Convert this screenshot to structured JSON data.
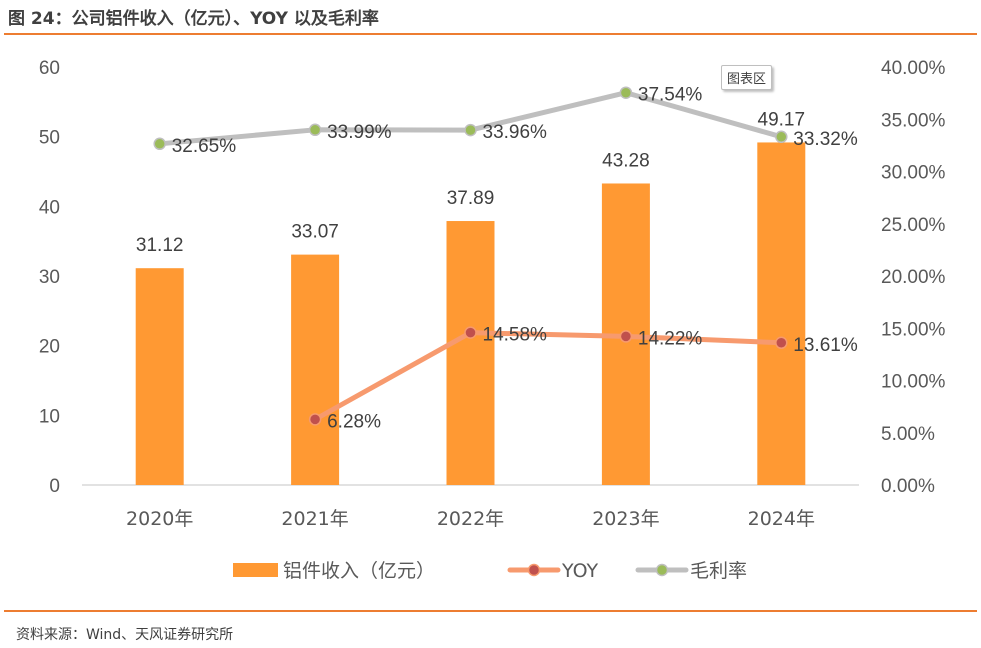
{
  "title": "图 24：公司铝件收入（亿元）、YOY 以及毛利率",
  "source": "资料来源：Wind、天风证券研究所",
  "tooltip": "图表区",
  "colors": {
    "accent_rule": "#ED7D31",
    "bar": "#FF9933",
    "yoy_line": "#F79A6E",
    "yoy_marker": "#C0504D",
    "margin_line": "#BFBFBF",
    "margin_marker": "#9BBB59"
  },
  "chart_data": {
    "type": "bar",
    "title": "公司铝件收入（亿元）、YOY 以及毛利率",
    "categories": [
      "2020年",
      "2021年",
      "2022年",
      "2023年",
      "2024年"
    ],
    "series": [
      {
        "name": "铝件收入（亿元）",
        "type": "bar",
        "axis": "left",
        "values": [
          31.12,
          33.07,
          37.89,
          43.28,
          49.17
        ],
        "labels": [
          "31.12",
          "33.07",
          "37.89",
          "43.28",
          "49.17"
        ]
      },
      {
        "name": "YOY",
        "type": "line",
        "axis": "right",
        "values": [
          null,
          6.28,
          14.58,
          14.22,
          13.61
        ],
        "labels": [
          null,
          "6.28%",
          "14.58%",
          "14.22%",
          "13.61%"
        ]
      },
      {
        "name": "毛利率",
        "type": "line",
        "axis": "right",
        "values": [
          32.65,
          33.99,
          33.96,
          37.54,
          33.32
        ],
        "labels": [
          "32.65%",
          "33.99%",
          "33.96%",
          "37.54%",
          "33.32%"
        ]
      }
    ],
    "left_axis": {
      "ylim": [
        0,
        60
      ],
      "ticks": [
        "0",
        "10",
        "20",
        "30",
        "40",
        "50",
        "60"
      ]
    },
    "right_axis": {
      "ylim": [
        0,
        40
      ],
      "ticks": [
        "0.00%",
        "5.00%",
        "10.00%",
        "15.00%",
        "20.00%",
        "25.00%",
        "30.00%",
        "35.00%",
        "40.00%"
      ]
    },
    "xlabel": "",
    "ylabel": "",
    "grid": false,
    "legend": {
      "placement": "bottom",
      "entries": [
        "铝件收入（亿元）",
        "YOY",
        "毛利率"
      ]
    }
  }
}
